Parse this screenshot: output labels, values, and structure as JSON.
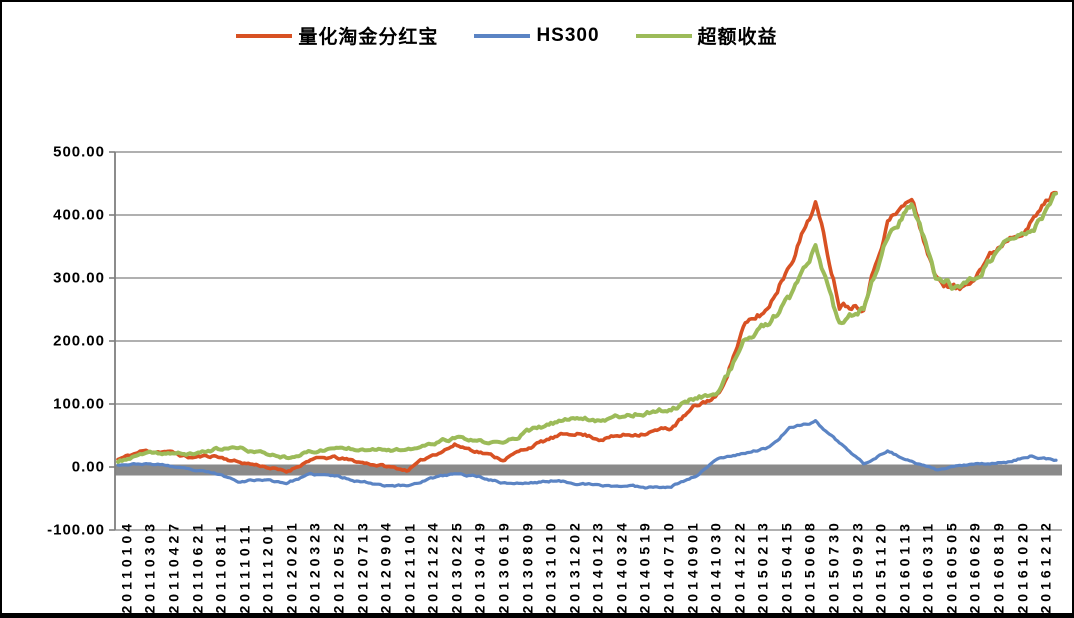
{
  "chart_data": {
    "type": "line",
    "title": "",
    "legend_position": "top",
    "grid": true,
    "x_axis": {
      "tick_label_rotation": -90,
      "categories": [
        "20110104",
        "20110303",
        "20110427",
        "20110621",
        "20110811",
        "20111011",
        "20111201",
        "20120201",
        "20120323",
        "20120522",
        "20120713",
        "20120904",
        "20121101",
        "20121224",
        "20130225",
        "20130419",
        "20130619",
        "20130809",
        "20131010",
        "20131202",
        "20140123",
        "20140324",
        "20140519",
        "20140710",
        "20140901",
        "20141030",
        "20141222",
        "20150213",
        "20150415",
        "20150608",
        "20150730",
        "20150923",
        "20151120",
        "20160113",
        "20160311",
        "20160505",
        "20160629",
        "20160819",
        "20161020",
        "20161212"
      ]
    },
    "y_axis": {
      "min": -100,
      "max": 500,
      "tick_labels": [
        "500.00",
        "400.00",
        "300.00",
        "200.00",
        "100.00",
        "0.00",
        "-100.00"
      ],
      "tick_values": [
        500,
        400,
        300,
        200,
        100,
        0,
        -100
      ]
    },
    "series": [
      {
        "name": "量化淘金分红宝",
        "color": "#D85123",
        "values": [
          12,
          25,
          25,
          15,
          18,
          8,
          2,
          -8,
          12,
          15,
          8,
          2,
          -5,
          18,
          35,
          25,
          12,
          30,
          45,
          55,
          45,
          50,
          55,
          62,
          95,
          115,
          220,
          250,
          330,
          420,
          260,
          258,
          390,
          425,
          300,
          280,
          325,
          365,
          390,
          440
        ]
      },
      {
        "name": "HS300",
        "color": "#5B84C4",
        "values": [
          4,
          5,
          3,
          -5,
          -10,
          -22,
          -20,
          -25,
          -12,
          -14,
          -22,
          -28,
          -30,
          -18,
          -11,
          -15,
          -25,
          -26,
          -22,
          -25,
          -30,
          -30,
          -32,
          -30,
          -15,
          15,
          22,
          30,
          62,
          72,
          38,
          5,
          25,
          8,
          -5,
          2,
          5,
          8,
          18,
          10
        ]
      },
      {
        "name": "超额收益",
        "color": "#9CBB59",
        "values": [
          8,
          20,
          22,
          20,
          28,
          30,
          22,
          16,
          24,
          30,
          30,
          30,
          25,
          36,
          46,
          40,
          37,
          56,
          67,
          80,
          75,
          82,
          87,
          92,
          110,
          120,
          198,
          225,
          268,
          348,
          222,
          253,
          365,
          417,
          305,
          278,
          320,
          357,
          372,
          430
        ]
      }
    ],
    "style": {
      "gridline_color": "#969696",
      "axis_color": "#7F7F7F",
      "zero_band_color": "#8A8A8A",
      "background": "#FFFFFF",
      "frame_border_color": "#000000"
    }
  }
}
